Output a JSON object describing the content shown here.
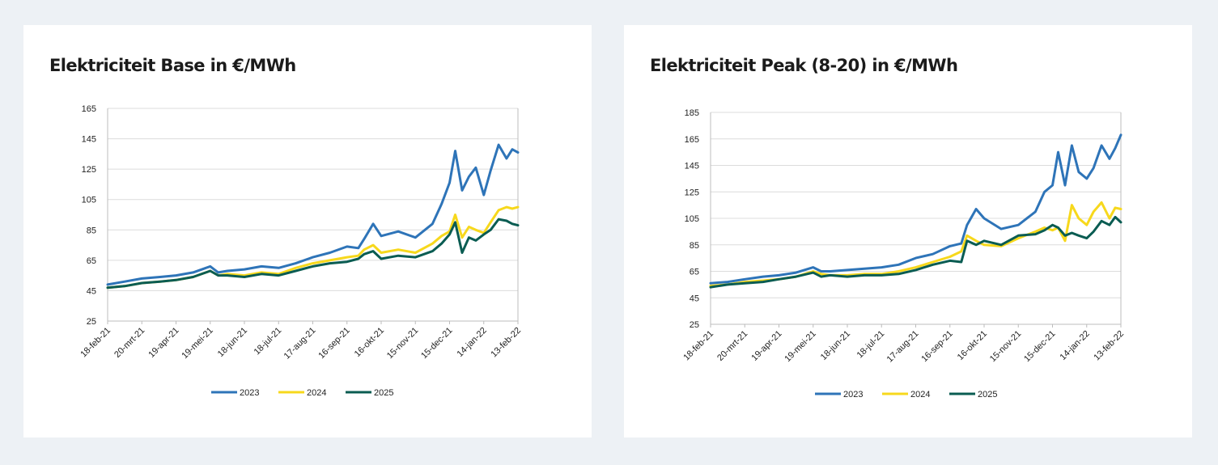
{
  "colors": {
    "s2023": "#2e74b8",
    "s2024": "#f7d81c",
    "s2025": "#0a5c52",
    "grid": "#dcdcdc",
    "axis": "#bcbcbc"
  },
  "chart_data": [
    {
      "type": "line",
      "title": "Elektriciteit Base in €/MWh",
      "ylim": [
        25,
        165
      ],
      "yticks": [
        25,
        45,
        65,
        85,
        105,
        125,
        145,
        165
      ],
      "xlim": [
        "2021-02-18",
        "2022-02-13"
      ],
      "xticks": [
        "18-feb-21",
        "20-mrt-21",
        "19-apr-21",
        "19-mei-21",
        "18-jun-21",
        "18-jul-21",
        "17-aug-21",
        "16-sep-21",
        "16-okt-21",
        "15-nov-21",
        "15-dec-21",
        "14-jan-22",
        "13-feb-22"
      ],
      "grid": "horizontal",
      "legend": "bottom",
      "series": [
        {
          "name": "2023",
          "color": "#2e74b8",
          "x": [
            "2021-02-18",
            "2021-03-05",
            "2021-03-20",
            "2021-04-05",
            "2021-04-19",
            "2021-05-04",
            "2021-05-19",
            "2021-05-26",
            "2021-06-03",
            "2021-06-18",
            "2021-07-03",
            "2021-07-18",
            "2021-08-02",
            "2021-08-17",
            "2021-09-01",
            "2021-09-16",
            "2021-09-26",
            "2021-10-01",
            "2021-10-09",
            "2021-10-16",
            "2021-10-31",
            "2021-11-15",
            "2021-11-30",
            "2021-12-08",
            "2021-12-15",
            "2021-12-20",
            "2021-12-26",
            "2022-01-01",
            "2022-01-07",
            "2022-01-14",
            "2022-01-20",
            "2022-01-27",
            "2022-02-03",
            "2022-02-08",
            "2022-02-13"
          ],
          "y": [
            49,
            51,
            53,
            54,
            55,
            57,
            61,
            57,
            58,
            59,
            61,
            60,
            63,
            67,
            70,
            74,
            73,
            79,
            89,
            81,
            84,
            80,
            89,
            102,
            116,
            137,
            111,
            120,
            126,
            108,
            124,
            141,
            132,
            138,
            136
          ]
        },
        {
          "name": "2024",
          "color": "#f7d81c",
          "x": [
            "2021-02-18",
            "2021-03-05",
            "2021-03-20",
            "2021-04-05",
            "2021-04-19",
            "2021-05-04",
            "2021-05-19",
            "2021-05-26",
            "2021-06-03",
            "2021-06-18",
            "2021-07-03",
            "2021-07-18",
            "2021-08-02",
            "2021-08-17",
            "2021-09-01",
            "2021-09-16",
            "2021-09-26",
            "2021-10-01",
            "2021-10-09",
            "2021-10-16",
            "2021-10-31",
            "2021-11-15",
            "2021-11-30",
            "2021-12-08",
            "2021-12-15",
            "2021-12-20",
            "2021-12-26",
            "2022-01-01",
            "2022-01-07",
            "2022-01-14",
            "2022-01-20",
            "2022-01-27",
            "2022-02-03",
            "2022-02-08",
            "2022-02-13"
          ],
          "y": [
            47,
            48,
            50,
            51,
            52,
            54,
            58,
            55,
            56,
            55,
            57,
            56,
            60,
            63,
            65,
            67,
            68,
            72,
            75,
            70,
            72,
            70,
            76,
            81,
            84,
            95,
            80,
            87,
            85,
            83,
            90,
            98,
            100,
            99,
            100
          ]
        },
        {
          "name": "2025",
          "color": "#0a5c52",
          "x": [
            "2021-02-18",
            "2021-03-05",
            "2021-03-20",
            "2021-04-05",
            "2021-04-19",
            "2021-05-04",
            "2021-05-19",
            "2021-05-26",
            "2021-06-03",
            "2021-06-18",
            "2021-07-03",
            "2021-07-18",
            "2021-08-02",
            "2021-08-17",
            "2021-09-01",
            "2021-09-16",
            "2021-09-26",
            "2021-10-01",
            "2021-10-09",
            "2021-10-16",
            "2021-10-31",
            "2021-11-15",
            "2021-11-30",
            "2021-12-08",
            "2021-12-15",
            "2021-12-20",
            "2021-12-26",
            "2022-01-01",
            "2022-01-07",
            "2022-01-14",
            "2022-01-20",
            "2022-01-27",
            "2022-02-03",
            "2022-02-08",
            "2022-02-13"
          ],
          "y": [
            47,
            48,
            50,
            51,
            52,
            54,
            58,
            55,
            55,
            54,
            56,
            55,
            58,
            61,
            63,
            64,
            66,
            69,
            71,
            66,
            68,
            67,
            71,
            76,
            82,
            90,
            70,
            80,
            78,
            82,
            85,
            92,
            91,
            89,
            88
          ]
        }
      ]
    },
    {
      "type": "line",
      "title": "Elektriciteit Peak (8-20) in €/MWh",
      "ylim": [
        25,
        185
      ],
      "yticks": [
        25,
        45,
        65,
        85,
        105,
        125,
        145,
        165,
        185
      ],
      "xlim": [
        "2021-02-18",
        "2022-02-13"
      ],
      "xticks": [
        "18-feb-21",
        "20-mrt-21",
        "19-apr-21",
        "19-mei-21",
        "18-jun-21",
        "18-jul-21",
        "17-aug-21",
        "16-sep-21",
        "16-okt-21",
        "15-nov-21",
        "15-dec-21",
        "14-jan-22",
        "13-feb-22"
      ],
      "grid": "horizontal",
      "legend": "bottom",
      "series": [
        {
          "name": "2023",
          "color": "#2e74b8",
          "x": [
            "2021-02-18",
            "2021-03-05",
            "2021-03-20",
            "2021-04-05",
            "2021-04-19",
            "2021-05-04",
            "2021-05-19",
            "2021-05-26",
            "2021-06-03",
            "2021-06-18",
            "2021-07-03",
            "2021-07-18",
            "2021-08-02",
            "2021-08-17",
            "2021-09-01",
            "2021-09-16",
            "2021-09-26",
            "2021-10-01",
            "2021-10-09",
            "2021-10-16",
            "2021-10-31",
            "2021-11-15",
            "2021-11-30",
            "2021-12-08",
            "2021-12-15",
            "2021-12-20",
            "2021-12-26",
            "2022-01-01",
            "2022-01-07",
            "2022-01-14",
            "2022-01-20",
            "2022-01-27",
            "2022-02-03",
            "2022-02-08",
            "2022-02-13"
          ],
          "y": [
            56,
            57,
            59,
            61,
            62,
            64,
            68,
            65,
            65,
            66,
            67,
            68,
            70,
            75,
            78,
            84,
            86,
            100,
            112,
            105,
            97,
            100,
            110,
            125,
            130,
            155,
            130,
            160,
            140,
            135,
            143,
            160,
            150,
            158,
            168
          ]
        },
        {
          "name": "2024",
          "color": "#f7d81c",
          "x": [
            "2021-02-18",
            "2021-03-05",
            "2021-03-20",
            "2021-04-05",
            "2021-04-19",
            "2021-05-04",
            "2021-05-19",
            "2021-05-26",
            "2021-06-03",
            "2021-06-18",
            "2021-07-03",
            "2021-07-18",
            "2021-08-02",
            "2021-08-17",
            "2021-09-01",
            "2021-09-16",
            "2021-09-26",
            "2021-10-01",
            "2021-10-09",
            "2021-10-16",
            "2021-10-31",
            "2021-11-15",
            "2021-11-30",
            "2021-12-08",
            "2021-12-15",
            "2021-12-20",
            "2021-12-26",
            "2022-01-01",
            "2022-01-07",
            "2022-01-14",
            "2022-01-20",
            "2022-01-27",
            "2022-02-03",
            "2022-02-08",
            "2022-02-13"
          ],
          "y": [
            54,
            55,
            57,
            58,
            59,
            61,
            65,
            63,
            62,
            62,
            63,
            63,
            65,
            68,
            72,
            76,
            80,
            92,
            88,
            85,
            84,
            90,
            95,
            98,
            96,
            98,
            88,
            115,
            105,
            100,
            110,
            117,
            105,
            113,
            112
          ]
        },
        {
          "name": "2025",
          "color": "#0a5c52",
          "x": [
            "2021-02-18",
            "2021-03-05",
            "2021-03-20",
            "2021-04-05",
            "2021-04-19",
            "2021-05-04",
            "2021-05-19",
            "2021-05-26",
            "2021-06-03",
            "2021-06-18",
            "2021-07-03",
            "2021-07-18",
            "2021-08-02",
            "2021-08-17",
            "2021-09-01",
            "2021-09-16",
            "2021-09-26",
            "2021-10-01",
            "2021-10-09",
            "2021-10-16",
            "2021-10-31",
            "2021-11-15",
            "2021-11-30",
            "2021-12-08",
            "2021-12-15",
            "2021-12-20",
            "2021-12-26",
            "2022-01-01",
            "2022-01-07",
            "2022-01-14",
            "2022-01-20",
            "2022-01-27",
            "2022-02-03",
            "2022-02-08",
            "2022-02-13"
          ],
          "y": [
            53,
            55,
            56,
            57,
            59,
            61,
            64,
            61,
            62,
            61,
            62,
            62,
            63,
            66,
            70,
            73,
            72,
            88,
            85,
            88,
            85,
            92,
            93,
            96,
            100,
            98,
            92,
            94,
            92,
            90,
            95,
            103,
            100,
            106,
            102
          ]
        }
      ]
    }
  ]
}
